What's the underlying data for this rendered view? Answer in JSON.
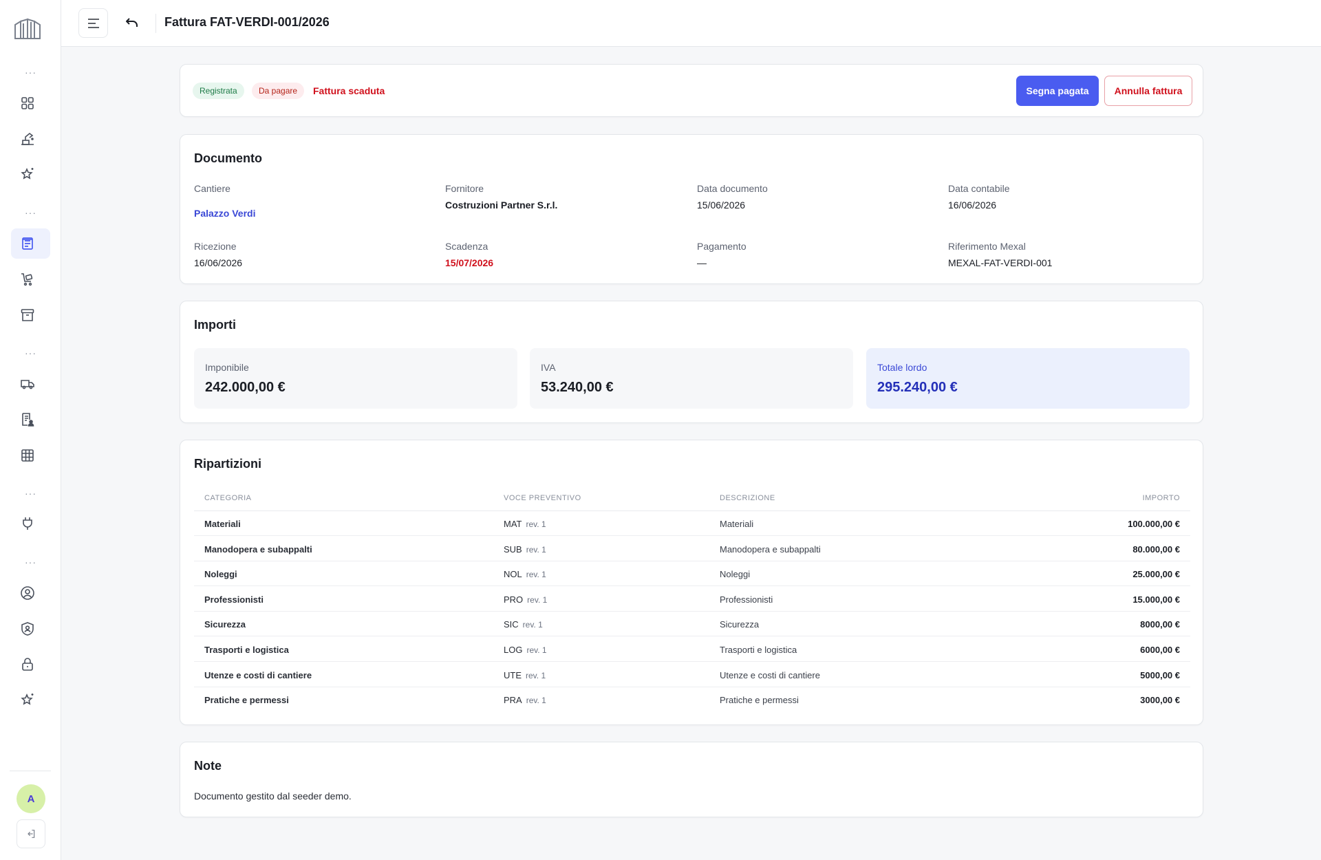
{
  "header": {
    "title": "Fattura FAT-VERDI-001/2026"
  },
  "sidebar": {
    "avatar_initial": "A",
    "nav_items": [
      {
        "icon": "dashboard-grid-icon"
      },
      {
        "icon": "construction-site-icon"
      },
      {
        "icon": "star-sparkle-icon"
      },
      {
        "icon": "invoice-list-icon",
        "active": true
      },
      {
        "icon": "cart-tag-icon"
      },
      {
        "icon": "archive-box-icon"
      },
      {
        "icon": "truck-icon"
      },
      {
        "icon": "document-user-icon"
      },
      {
        "icon": "table-grid-icon"
      },
      {
        "icon": "plug-icon"
      },
      {
        "icon": "user-circle-icon"
      },
      {
        "icon": "shield-user-icon"
      },
      {
        "icon": "lock-icon"
      },
      {
        "icon": "star-sparkle-icon"
      }
    ]
  },
  "status": {
    "badge_registered": "Registrata",
    "badge_to_pay": "Da pagare",
    "overdue_label": "Fattura scaduta",
    "mark_paid_button": "Segna pagata",
    "cancel_invoice_button": "Annulla fattura"
  },
  "document": {
    "title": "Documento",
    "site_label": "Cantiere",
    "site_value": "Palazzo Verdi",
    "supplier_label": "Fornitore",
    "supplier_value": "Costruzioni Partner S.r.l.",
    "doc_date_label": "Data documento",
    "doc_date_value": "15/06/2026",
    "accounting_date_label": "Data contabile",
    "accounting_date_value": "16/06/2026",
    "received_label": "Ricezione",
    "received_value": "16/06/2026",
    "due_label": "Scadenza",
    "due_value": "15/07/2026",
    "payment_label": "Pagamento",
    "payment_value": "—",
    "mexal_label": "Riferimento Mexal",
    "mexal_value": "MEXAL-FAT-VERDI-001"
  },
  "amounts": {
    "title": "Importi",
    "taxable_label": "Imponibile",
    "taxable_value": "242.000,00 €",
    "vat_label": "IVA",
    "vat_value": "53.240,00 €",
    "gross_label": "Totale lordo",
    "gross_value": "295.240,00 €"
  },
  "allocations": {
    "title": "Ripartizioni",
    "columns": {
      "category": "CATEGORIA",
      "budget_item": "VOCE PREVENTIVO",
      "description": "DESCRIZIONE",
      "amount": "IMPORTO"
    },
    "rows": [
      {
        "category": "Materiali",
        "code": "MAT",
        "rev": "rev. 1",
        "description": "Materiali",
        "amount": "100.000,00 €"
      },
      {
        "category": "Manodopera e subappalti",
        "code": "SUB",
        "rev": "rev. 1",
        "description": "Manodopera e subappalti",
        "amount": "80.000,00 €"
      },
      {
        "category": "Noleggi",
        "code": "NOL",
        "rev": "rev. 1",
        "description": "Noleggi",
        "amount": "25.000,00 €"
      },
      {
        "category": "Professionisti",
        "code": "PRO",
        "rev": "rev. 1",
        "description": "Professionisti",
        "amount": "15.000,00 €"
      },
      {
        "category": "Sicurezza",
        "code": "SIC",
        "rev": "rev. 1",
        "description": "Sicurezza",
        "amount": "8000,00 €"
      },
      {
        "category": "Trasporti e logistica",
        "code": "LOG",
        "rev": "rev. 1",
        "description": "Trasporti e logistica",
        "amount": "6000,00 €"
      },
      {
        "category": "Utenze e costi di cantiere",
        "code": "UTE",
        "rev": "rev. 1",
        "description": "Utenze e costi di cantiere",
        "amount": "5000,00 €"
      },
      {
        "category": "Pratiche e permessi",
        "code": "PRA",
        "rev": "rev. 1",
        "description": "Pratiche e permessi",
        "amount": "3000,00 €"
      }
    ]
  },
  "notes": {
    "title": "Note",
    "text": "Documento gestito dal seeder demo."
  },
  "colors": {
    "primary": "#4a5cf0",
    "danger": "#d0101c",
    "success": "#1d7a46",
    "link": "#3a48d6"
  }
}
